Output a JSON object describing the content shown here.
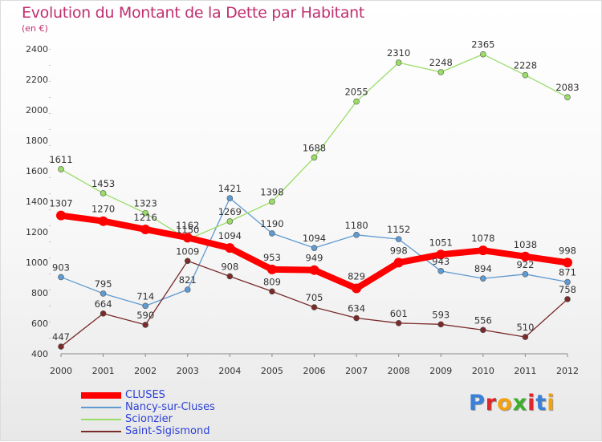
{
  "chart_data": {
    "type": "line",
    "title": "Evolution du Montant de la Dette par Habitant",
    "subtitle": "(en €)",
    "x": [
      "2000",
      "2001",
      "2002",
      "2003",
      "2004",
      "2005",
      "2006",
      "2007",
      "2008",
      "2009",
      "2010",
      "2011",
      "2012"
    ],
    "ylim": [
      400,
      2400
    ],
    "yticks": [
      400,
      600,
      800,
      1000,
      1200,
      1400,
      1600,
      1800,
      2000,
      2200,
      2400
    ],
    "grid": false,
    "legend_position": "bottom-left",
    "series": [
      {
        "name": "CLUSES",
        "color": "#ff0000",
        "values": [
          1307,
          1270,
          1216,
          1162,
          1094,
          953,
          949,
          829,
          998,
          1051,
          1078,
          1038,
          998
        ]
      },
      {
        "name": "Nancy-sur-Cluses",
        "color": "#5f9ad1",
        "values": [
          903,
          795,
          714,
          821,
          1421,
          1190,
          1094,
          1180,
          1152,
          943,
          894,
          922,
          871
        ]
      },
      {
        "name": "Scionzier",
        "color": "#99dd66",
        "values": [
          1611,
          1453,
          1323,
          1150,
          1269,
          1398,
          1688,
          2055,
          2310,
          2248,
          2365,
          2228,
          2083
        ]
      },
      {
        "name": "Saint-Sigismond",
        "color": "#7a2a2a",
        "values": [
          447,
          664,
          590,
          1009,
          908,
          809,
          705,
          634,
          601,
          593,
          556,
          510,
          758
        ]
      }
    ]
  },
  "logo": {
    "letters": [
      "P",
      "r",
      "o",
      "x",
      "i",
      "t",
      "i"
    ],
    "colors": [
      "#3a7fd8",
      "#e0262b",
      "#f2a20f",
      "#3fae2a",
      "#e0262b",
      "#3a7fd8",
      "#f2a20f"
    ]
  }
}
